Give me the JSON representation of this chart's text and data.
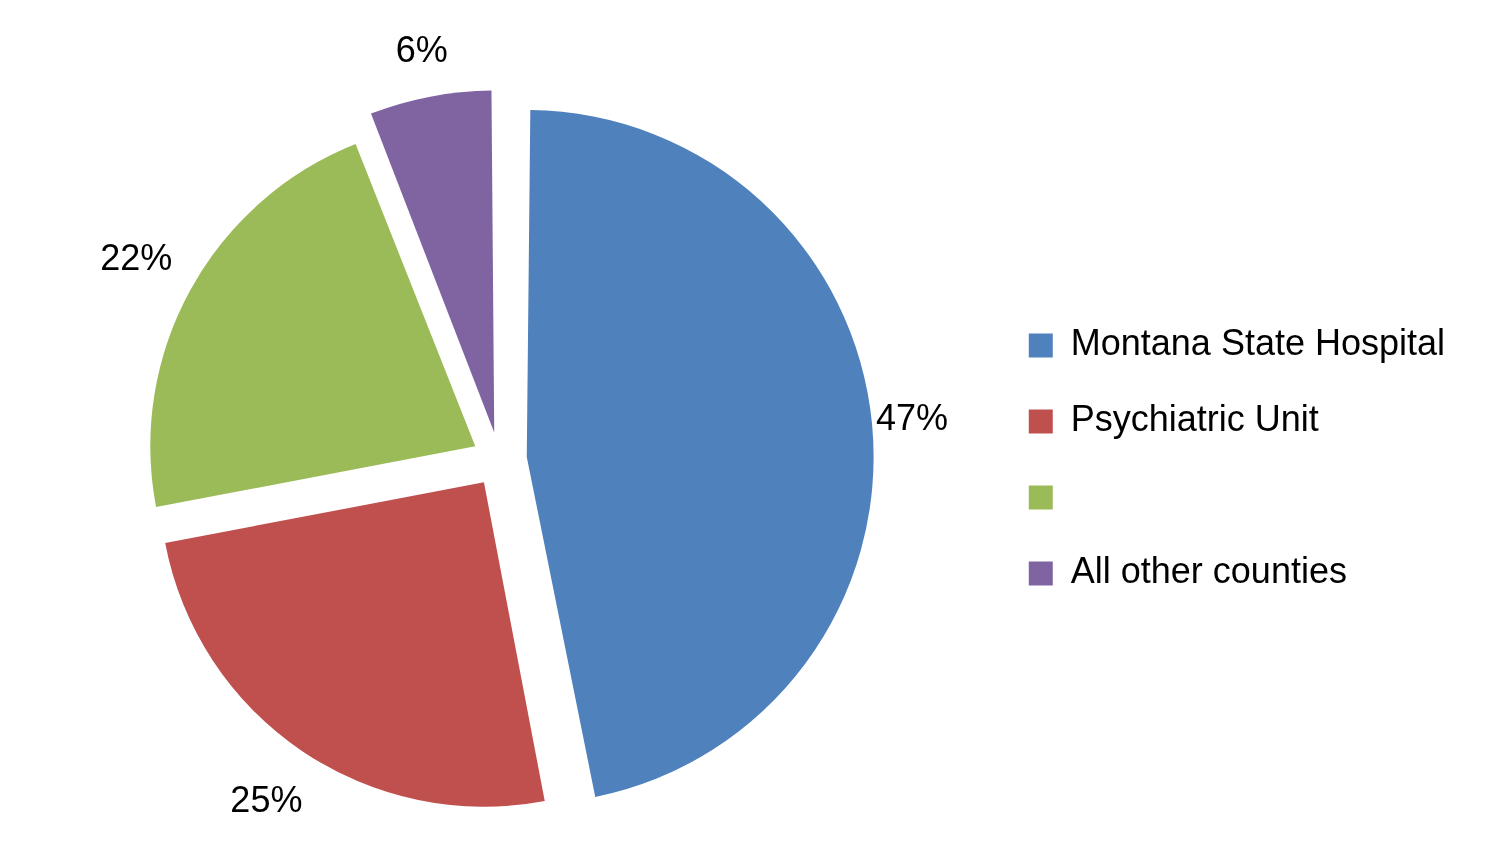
{
  "chart_data": {
    "type": "pie",
    "categories": [
      "Montana State Hospital",
      "Psychiatric Unit",
      null,
      "All other counties"
    ],
    "values": [
      47,
      25,
      22,
      6
    ],
    "colors": [
      "#4f81bd",
      "#c0504d",
      "#9bbb59",
      "#8064a2"
    ],
    "value_labels": [
      "47%",
      "25%",
      "22%",
      "6%"
    ],
    "legend": "right"
  }
}
